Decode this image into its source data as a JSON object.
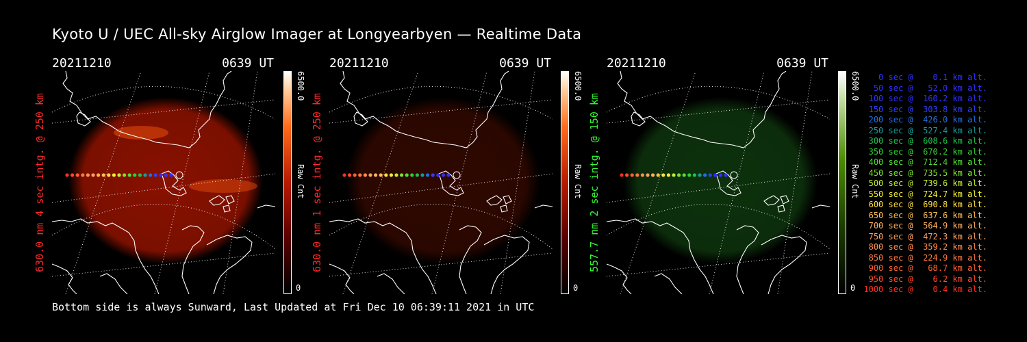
{
  "title": "Kyoto U / UEC All-sky Airglow Imager at Longyearbyen — Realtime Data",
  "footer": "Bottom side is always Sunward, Last Updated at Fri Dec 10 06:39:11 2021 in UTC",
  "colors": {
    "red": "#ff2020",
    "green": "#30ff30"
  },
  "panels": [
    {
      "date": "20211210",
      "time": "0639 UT",
      "ylabel": "630.0 nm 4 sec intg. @ 250 km",
      "cb_max": "6500.0",
      "cb_min": "0",
      "cb_unit": "Raw Cnt",
      "label_color": "#ff2a2a",
      "glow_color": "#a01400",
      "glow_opacity": 0.85,
      "gradient": "red"
    },
    {
      "date": "20211210",
      "time": "0639 UT",
      "ylabel": "630.0 nm 1 sec intg. @ 250 km",
      "cb_max": "6500.0",
      "cb_min": "0",
      "cb_unit": "Raw Cnt",
      "label_color": "#ff2a2a",
      "glow_color": "#3a0a00",
      "glow_opacity": 0.8,
      "gradient": "red"
    },
    {
      "date": "20211210",
      "time": "0639 UT",
      "ylabel": "557.7 nm 2 sec intg. @ 150 km",
      "cb_max": "6500.0",
      "cb_min": "0",
      "cb_unit": "Raw Cnt",
      "label_color": "#30ff30",
      "glow_color": "#0f3a0f",
      "glow_opacity": 0.85,
      "gradient": "green"
    }
  ],
  "trajectory": [
    {
      "text": "   0 sec @    0.1 km alt.",
      "color": "#3030ff"
    },
    {
      "text": "  50 sec @   52.0 km alt.",
      "color": "#3030ff"
    },
    {
      "text": " 100 sec @  160.2 km alt.",
      "color": "#3030ff"
    },
    {
      "text": " 150 sec @  303.8 km alt.",
      "color": "#3040ff"
    },
    {
      "text": " 200 sec @  426.0 km alt.",
      "color": "#2070e0"
    },
    {
      "text": " 250 sec @  527.4 km alt.",
      "color": "#1a9a9a"
    },
    {
      "text": " 300 sec @  608.6 km alt.",
      "color": "#20c050"
    },
    {
      "text": " 350 sec @  670.2 km alt.",
      "color": "#30d030"
    },
    {
      "text": " 400 sec @  712.4 km alt.",
      "color": "#50e030"
    },
    {
      "text": " 450 sec @  735.5 km alt.",
      "color": "#80e030"
    },
    {
      "text": " 500 sec @  739.6 km alt.",
      "color": "#c0f030"
    },
    {
      "text": " 550 sec @  724.7 km alt.",
      "color": "#f0f030"
    },
    {
      "text": " 600 sec @  690.8 km alt.",
      "color": "#ffe040"
    },
    {
      "text": " 650 sec @  637.6 km alt.",
      "color": "#ffc050"
    },
    {
      "text": " 700 sec @  564.9 km alt.",
      "color": "#ffb060"
    },
    {
      "text": " 750 sec @  472.3 km alt.",
      "color": "#ffa060"
    },
    {
      "text": " 800 sec @  359.2 km alt.",
      "color": "#ff9050"
    },
    {
      "text": " 850 sec @  224.9 km alt.",
      "color": "#ff7840"
    },
    {
      "text": " 900 sec @   68.7 km alt.",
      "color": "#ff6030"
    },
    {
      "text": " 950 sec @    6.2 km alt.",
      "color": "#ff4a28"
    },
    {
      "text": "1000 sec @    0.4 km alt.",
      "color": "#ff3020"
    }
  ]
}
